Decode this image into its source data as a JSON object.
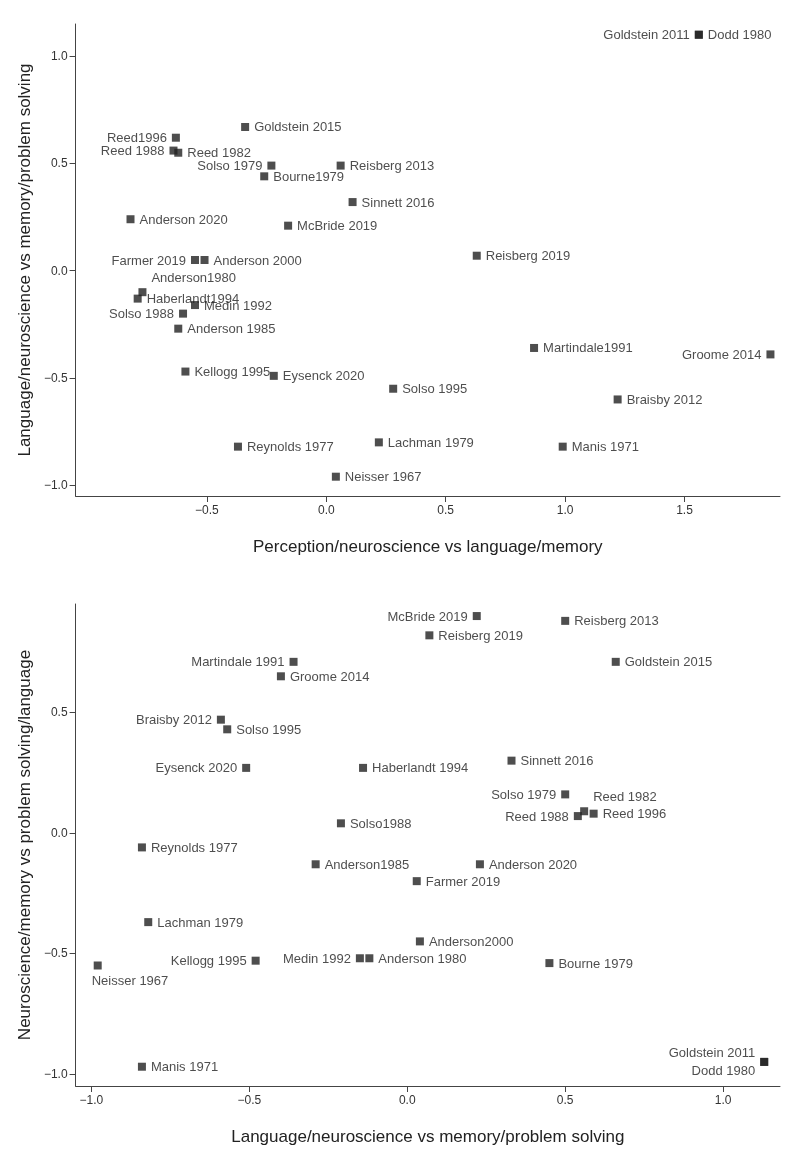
{
  "chart_data": [
    {
      "type": "scatter",
      "xlabel": "Perception/neuroscience vs language/memory",
      "ylabel": "Language/neuroscience vs memory/problem solving",
      "marker": "square",
      "xlim": [
        -1.05,
        1.9
      ],
      "ylim": [
        -1.05,
        1.15
      ],
      "xticks": [
        {
          "value": -0.5,
          "label": "−0.5"
        },
        {
          "value": 0,
          "label": "0.0"
        },
        {
          "value": 0.5,
          "label": "0.5"
        },
        {
          "value": 1,
          "label": "1.0"
        },
        {
          "value": 1.5,
          "label": "1.5"
        }
      ],
      "yticks": [
        {
          "value": -1,
          "label": "−1.0"
        },
        {
          "value": -0.5,
          "label": "−0.5"
        },
        {
          "value": 0,
          "label": "0.0"
        },
        {
          "value": 0.5,
          "label": "0.5"
        },
        {
          "value": 1,
          "label": "1.0"
        }
      ],
      "series": [
        {
          "color": "#222222",
          "x": [
            -0.63,
            -0.62,
            -0.64,
            -0.34,
            -0.23,
            -0.26,
            0.06,
            0.11,
            -0.82,
            -0.16,
            -0.55,
            -0.51,
            -0.77,
            -0.79,
            -0.55,
            -0.6,
            -0.62,
            -0.59,
            -0.22,
            -0.37,
            0.04,
            1.56,
            1.56,
            0.63,
            0.87,
            1.86,
            0.28,
            1.22,
            0.22,
            0.99
          ],
          "values": [
            0.62,
            0.55,
            0.56,
            0.67,
            0.49,
            0.44,
            0.49,
            0.32,
            0.24,
            0.21,
            0.05,
            0.05,
            -0.1,
            -0.13,
            -0.16,
            -0.2,
            -0.27,
            -0.47,
            -0.49,
            -0.82,
            -0.96,
            1.1,
            1.1,
            0.07,
            -0.36,
            -0.39,
            -0.55,
            -0.6,
            -0.8,
            -0.82
          ],
          "value_labels": [
            "Reed1996",
            "Reed 1982",
            "Reed 1988",
            "Goldstein 2015",
            "Solso 1979",
            "Bourne1979",
            "Reisberg 2013",
            "Sinnett 2016",
            "Anderson 2020",
            "McBride 2019",
            "Farmer 2019",
            "Anderson 2000",
            "Anderson1980",
            "Haberlandt1994",
            "Medin 1992",
            "Solso 1988",
            "Anderson 1985",
            "Kellogg 1995",
            "Eysenck 2020",
            "Reynolds 1977",
            "Neisser 1967",
            "Goldstein 2011",
            "Dodd 1980",
            "Reisberg 2019",
            "Martindale1991",
            "Groome 2014",
            "Solso 1995",
            "Braisby 2012",
            "Lachman 1979",
            "Manis 1971"
          ]
        }
      ]
    },
    {
      "type": "scatter",
      "xlabel": "Language/neuroscience vs memory/problem solving",
      "ylabel": "Neuroscience/memory vs problem solving/language",
      "marker": "square",
      "xlim": [
        -1.05,
        1.18
      ],
      "ylim": [
        -1.05,
        0.95
      ],
      "xticks": [
        {
          "value": -1,
          "label": "−1.0"
        },
        {
          "value": -0.5,
          "label": "−0.5"
        },
        {
          "value": 0,
          "label": "0.0"
        },
        {
          "value": 0.5,
          "label": "0.5"
        },
        {
          "value": 1,
          "label": "1.0"
        }
      ],
      "yticks": [
        {
          "value": -1,
          "label": "−1.0"
        },
        {
          "value": -0.5,
          "label": "−0.5"
        },
        {
          "value": 0,
          "label": "0.0"
        },
        {
          "value": 0.5,
          "label": "0.5"
        }
      ],
      "series": [
        {
          "color": "#222222",
          "x": [
            0.22,
            0.5,
            0.07,
            0.66,
            -0.36,
            -0.4,
            -0.59,
            -0.57,
            -0.51,
            -0.14,
            0.33,
            0.5,
            0.56,
            0.54,
            0.59,
            -0.21,
            -0.84,
            -0.29,
            0.23,
            0.03,
            -0.82,
            0.04,
            -0.48,
            -0.15,
            -0.12,
            0.45,
            -0.98,
            -0.84,
            1.13,
            1.13
          ],
          "values": [
            0.9,
            0.88,
            0.82,
            0.71,
            0.71,
            0.65,
            0.47,
            0.43,
            0.27,
            0.27,
            0.3,
            0.16,
            0.09,
            0.07,
            0.08,
            0.04,
            -0.06,
            -0.13,
            -0.13,
            -0.2,
            -0.37,
            -0.45,
            -0.53,
            -0.52,
            -0.52,
            -0.54,
            -0.55,
            -0.97,
            -0.95,
            -0.95
          ],
          "value_labels": [
            "McBride 2019",
            "Reisberg 2013",
            "Reisberg 2019",
            "Goldstein 2015",
            "Martindale 1991",
            "Groome 2014",
            "Braisby 2012",
            "Solso 1995",
            "Eysenck 2020",
            "Haberlandt 1994",
            "Sinnett 2016",
            "Solso 1979",
            "Reed 1982",
            "Reed 1988",
            "Reed 1996",
            "Solso1988",
            "Reynolds 1977",
            "Anderson1985",
            "Anderson 2020",
            "Farmer 2019",
            "Lachman 1979",
            "Anderson2000",
            "Kellogg 1995",
            "Medin 1992",
            "Anderson 1980",
            "Bourne 1979",
            "Neisser 1967",
            "Manis 1971",
            "Goldstein 2011",
            "Dodd 1980"
          ]
        }
      ]
    }
  ]
}
